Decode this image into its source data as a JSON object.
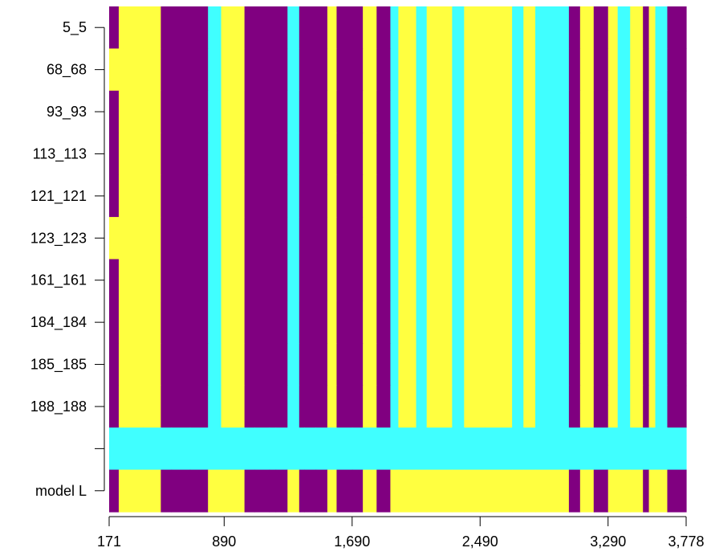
{
  "chart_data": {
    "type": "heatmap",
    "title": "",
    "xlabel": "",
    "ylabel": "",
    "x_range": [
      171,
      3778
    ],
    "x_ticks": [
      "171",
      "890",
      "1,690",
      "2,490",
      "3,290",
      "3,778"
    ],
    "x_tick_values": [
      171,
      890,
      1690,
      2490,
      3290,
      3778
    ],
    "rows": [
      "5_5",
      "68_68",
      "93_93",
      "113_113",
      "121_121",
      "123_123",
      "161_161",
      "184_184",
      "185_185",
      "188_188",
      "",
      "model L"
    ],
    "palette": {
      "1": "#FFFF40",
      "2": "#800080",
      "3": "#40FFFF"
    },
    "x_edges": [
      171,
      231,
      256,
      381,
      494,
      560,
      676,
      789,
      871,
      1017,
      1080,
      1172,
      1212,
      1286,
      1359,
      1392,
      1462,
      1535,
      1593,
      1690,
      1757,
      1843,
      1929,
      1979,
      2090,
      2156,
      2315,
      2390,
      2520,
      2625,
      2690,
      2761,
      2835,
      3005,
      3045,
      3115,
      3200,
      3290,
      3350,
      3428,
      3508,
      3545,
      3585,
      3660,
      3778
    ],
    "default_row": [
      2,
      1,
      1,
      1,
      2,
      2,
      2,
      3,
      1,
      2,
      2,
      2,
      2,
      3,
      2,
      2,
      2,
      1,
      2,
      2,
      1,
      2,
      3,
      1,
      3,
      1,
      3,
      1,
      1,
      1,
      3,
      1,
      3,
      3,
      2,
      1,
      2,
      1,
      3,
      1,
      2,
      1,
      3,
      2
    ],
    "overrides": [
      {
        "row": 1,
        "col": 0,
        "value": 1
      },
      {
        "row": 5,
        "col": 0,
        "value": 1
      }
    ],
    "special_rows": [
      {
        "row": 10,
        "values": [
          3,
          3,
          3,
          3,
          3,
          3,
          3,
          3,
          3,
          3,
          3,
          3,
          3,
          3,
          3,
          3,
          3,
          3,
          3,
          3,
          3,
          3,
          3,
          3,
          3,
          3,
          3,
          3,
          3,
          3,
          3,
          3,
          3,
          3,
          3,
          3,
          3,
          3,
          3,
          3,
          3,
          3,
          3,
          3
        ]
      },
      {
        "row": 11,
        "values": [
          2,
          1,
          1,
          1,
          2,
          2,
          2,
          1,
          1,
          2,
          2,
          2,
          2,
          1,
          2,
          2,
          2,
          1,
          2,
          2,
          1,
          2,
          1,
          1,
          1,
          1,
          1,
          1,
          1,
          1,
          1,
          1,
          1,
          1,
          2,
          1,
          2,
          1,
          1,
          1,
          2,
          1,
          1,
          2
        ]
      }
    ]
  }
}
